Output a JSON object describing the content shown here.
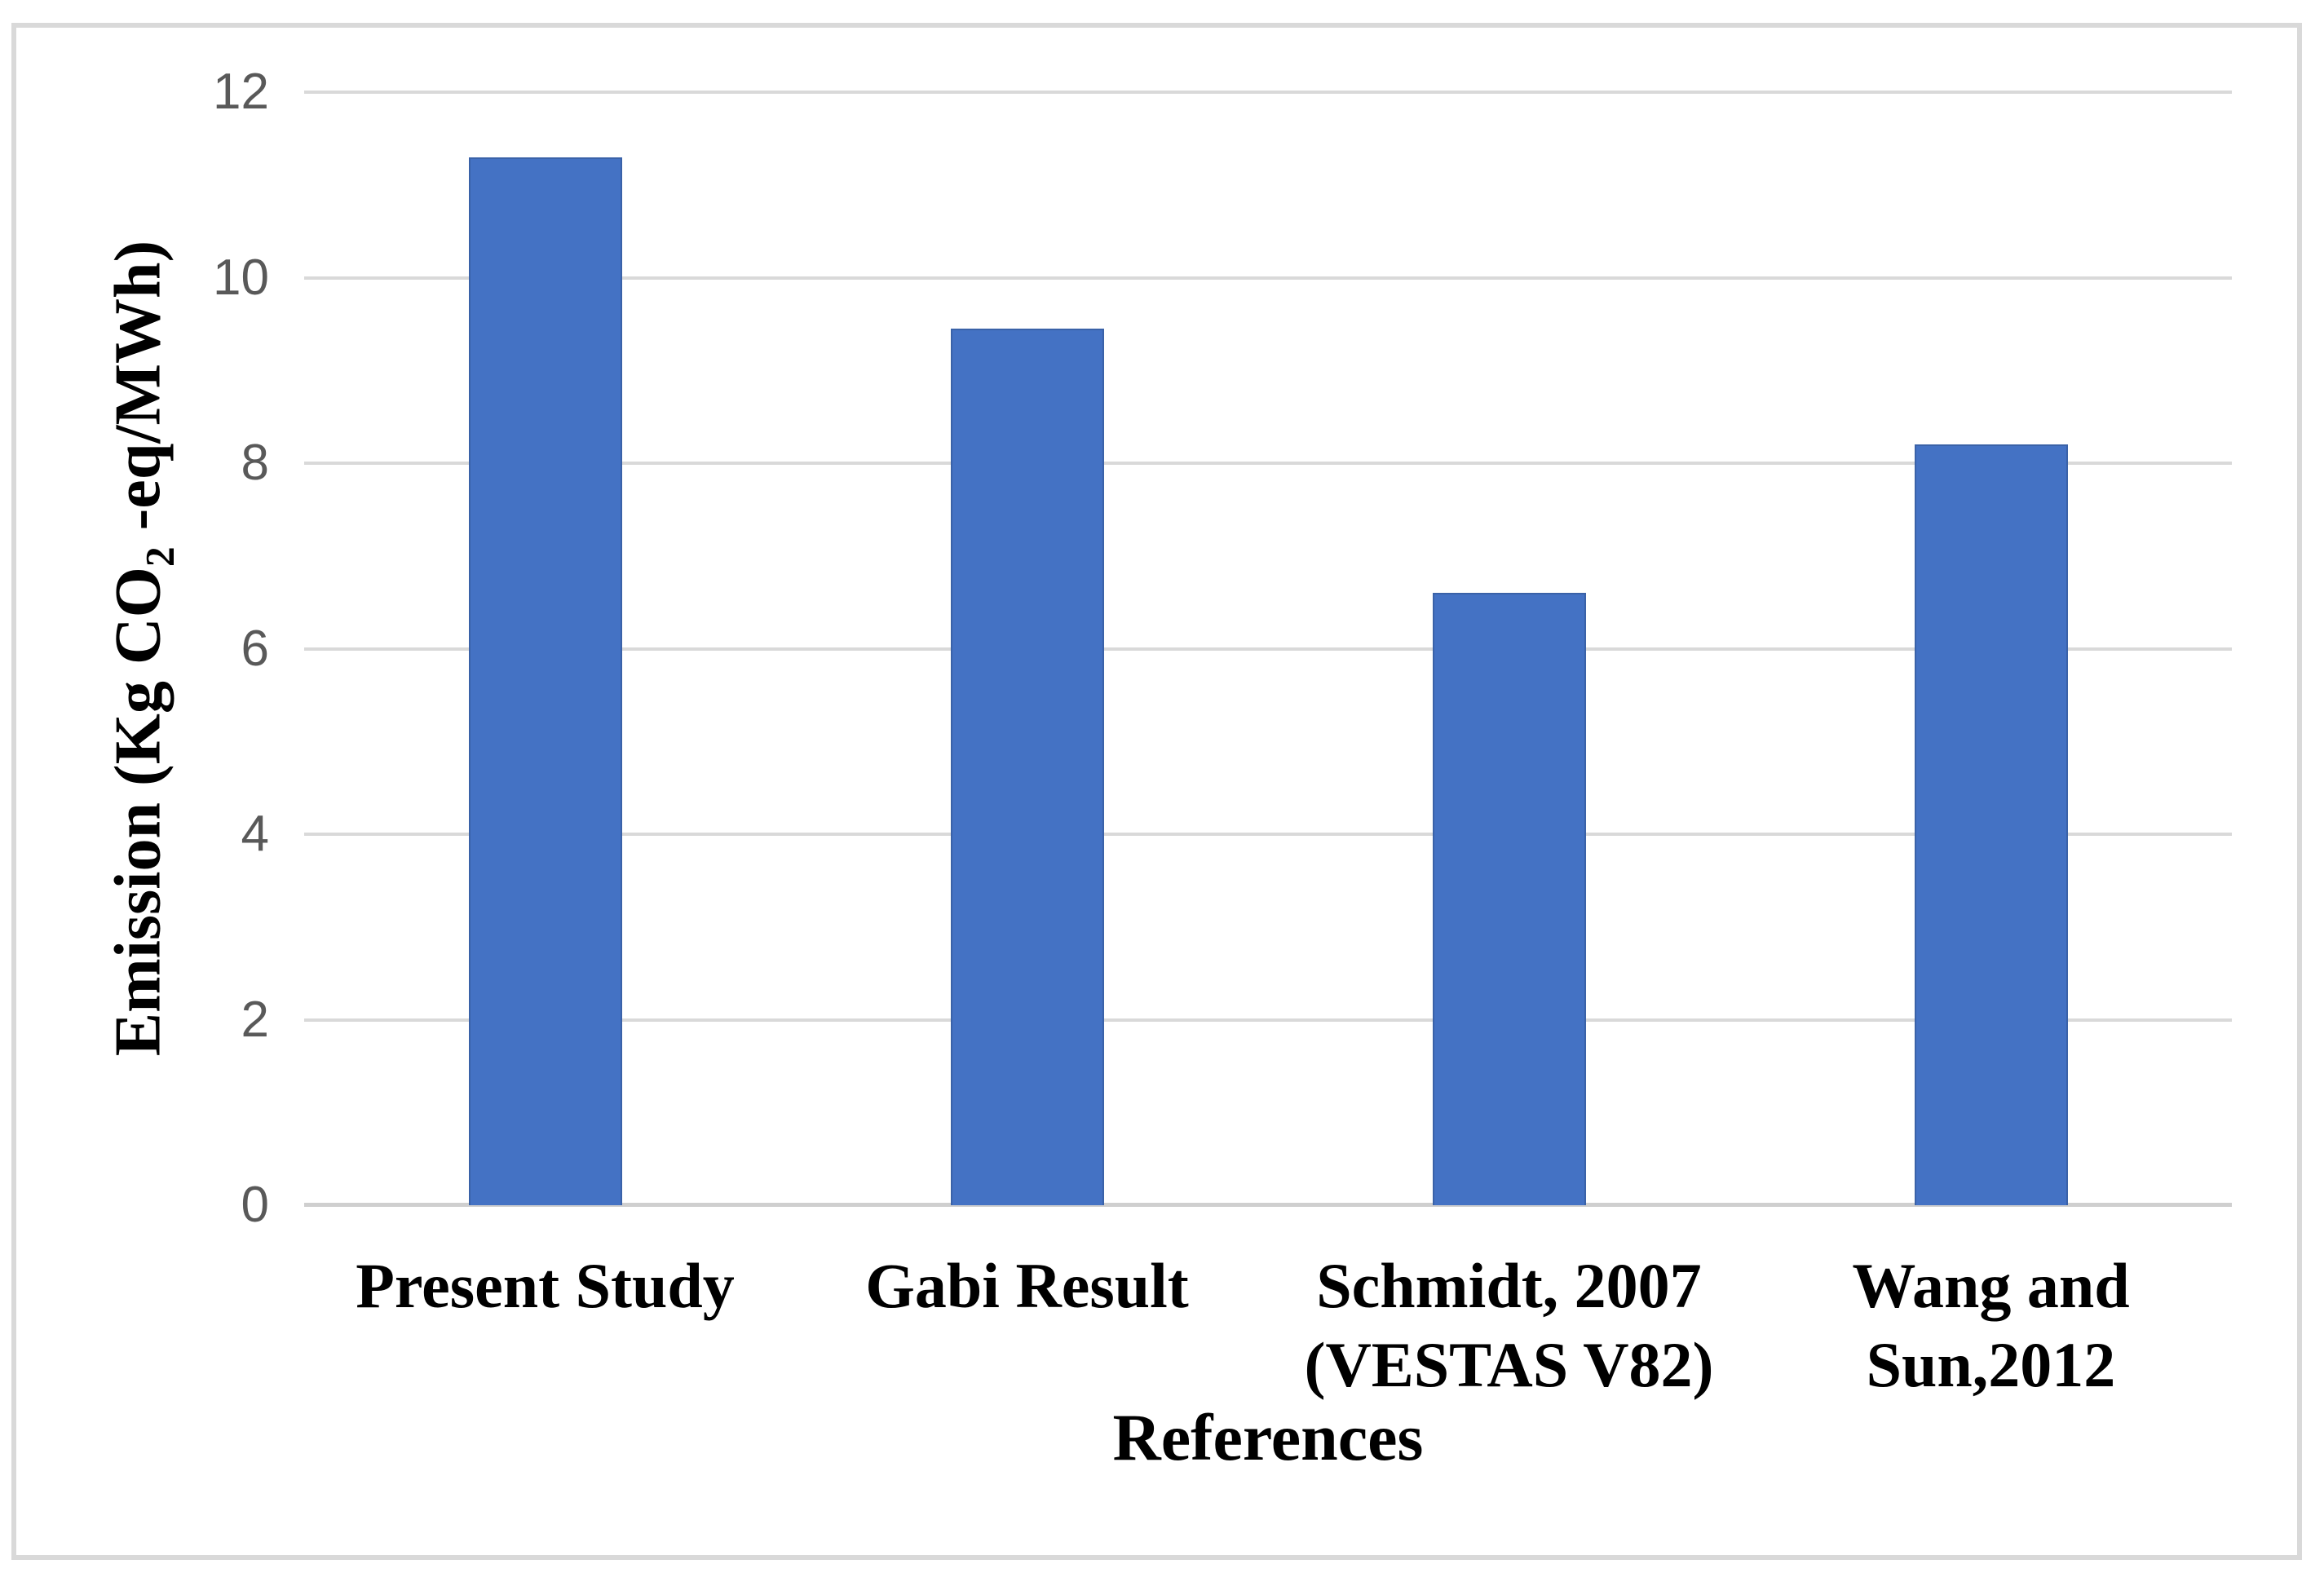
{
  "chart_data": {
    "type": "bar",
    "title": "",
    "categories": [
      "Present Study",
      "Gabi Result",
      "Schmidt, 2007 (VESTAS V82)",
      "Wang and Sun,2012"
    ],
    "category_lines": [
      [
        "Present Study"
      ],
      [
        "Gabi Result"
      ],
      [
        "Schmidt, 2007",
        "(VESTAS V82)"
      ],
      [
        "Wang and",
        "Sun,2012"
      ]
    ],
    "values": [
      11.3,
      9.45,
      6.6,
      8.2
    ],
    "xlabel": "References",
    "ylabel": "Emission (Kg CO₂ -eq/MWh)",
    "ylabel_parts": {
      "prefix": "Emission (Kg CO",
      "subscript": "2",
      "suffix": " -eq/MWh)"
    },
    "yticks": [
      0,
      2,
      4,
      6,
      8,
      10,
      12
    ],
    "ylim": [
      0,
      12
    ],
    "grid": true,
    "legend": "none",
    "colors": {
      "bar": "#4472c4",
      "bar_border": "#3a62a8",
      "gridline": "#d9d9d9",
      "tick_text": "#595959",
      "label_text": "#000000",
      "frame_border": "#d9d9d9",
      "background": "#ffffff"
    }
  }
}
